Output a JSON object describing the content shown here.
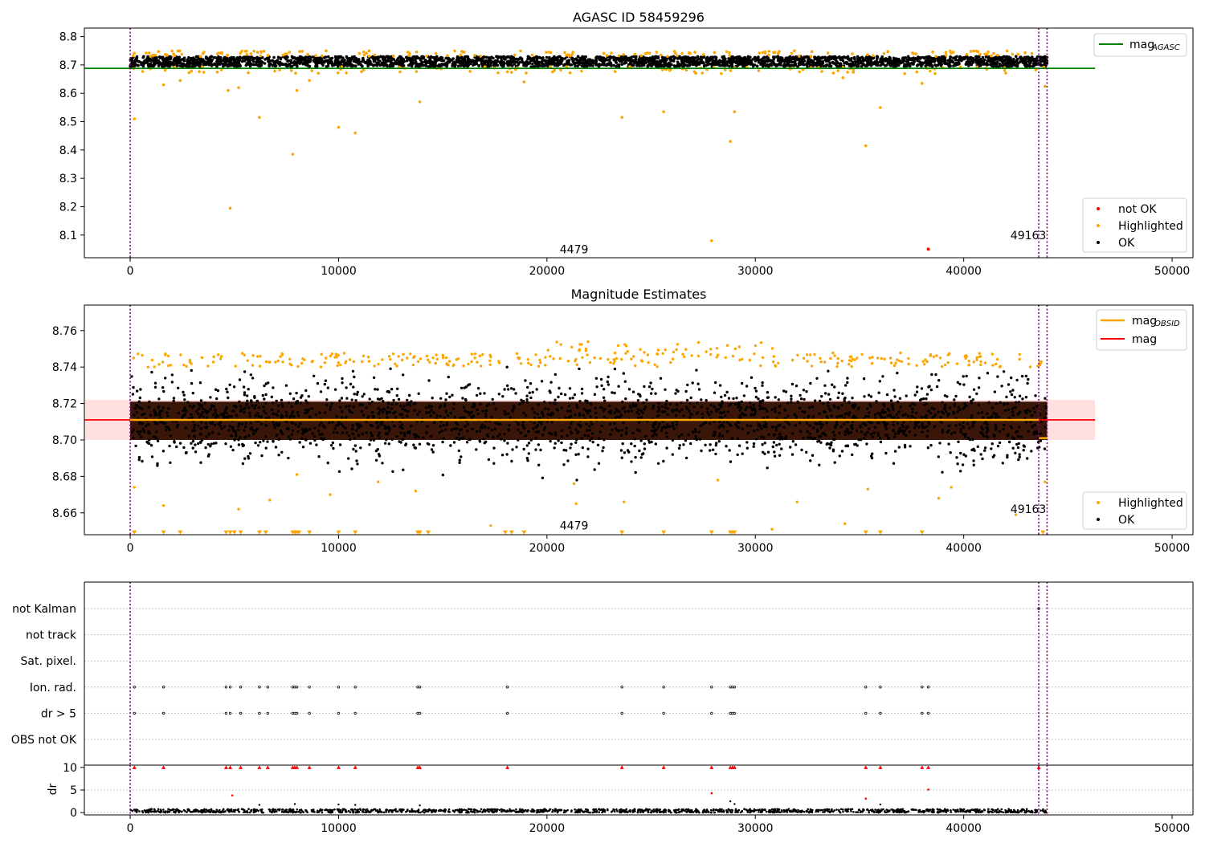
{
  "colors": {
    "ok": "#000000",
    "highlighted": "#ffa500",
    "not_ok": "#ff0000",
    "mag_agasc_line": "#008000",
    "mag_obsid_line": "#ffa500",
    "mag_line": "#ff0000",
    "mag_band": "#ffcccc",
    "obsid_boundary": "#800080",
    "grid": "#b0b0b0"
  },
  "chart_data": [
    {
      "type": "scatter",
      "title": "AGASC ID 58459296",
      "xlim": [
        -2200,
        51000
      ],
      "ylim": [
        8.02,
        8.83
      ],
      "xticks": [
        0,
        10000,
        20000,
        30000,
        40000,
        50000
      ],
      "xtick_labels": [
        "0",
        "10000",
        "20000",
        "30000",
        "40000",
        "50000"
      ],
      "yticks": [
        8.1,
        8.2,
        8.3,
        8.4,
        8.5,
        8.6,
        8.7,
        8.8
      ],
      "ytick_labels": [
        "8.1",
        "8.2",
        "8.3",
        "8.4",
        "8.5",
        "8.6",
        "8.7",
        "8.8"
      ],
      "x_range_of_points": [
        0,
        44000
      ],
      "ok_band": {
        "center": 8.712,
        "half_width": 0.018
      },
      "mag_agasc": {
        "y": 8.688,
        "x": [
          -2200,
          46300
        ]
      },
      "obsid_boundaries": [
        0,
        43600,
        44000
      ],
      "annotations": [
        {
          "text": "4479",
          "x": 21300,
          "y": 8.05
        },
        {
          "text": "49163",
          "x": 43100,
          "y": 8.1
        }
      ],
      "highlighted_outliers": [
        [
          200,
          8.51
        ],
        [
          1600,
          8.63
        ],
        [
          4800,
          8.195
        ],
        [
          4700,
          8.61
        ],
        [
          6200,
          8.515
        ],
        [
          7800,
          8.385
        ],
        [
          8000,
          8.61
        ],
        [
          10000,
          8.48
        ],
        [
          10800,
          8.46
        ],
        [
          13900,
          8.57
        ],
        [
          23600,
          8.515
        ],
        [
          25600,
          8.535
        ],
        [
          27900,
          8.08
        ],
        [
          28800,
          8.43
        ],
        [
          29000,
          8.535
        ],
        [
          35300,
          8.415
        ],
        [
          36000,
          8.55
        ],
        [
          43900,
          8.625
        ],
        [
          38000,
          8.635
        ],
        [
          2400,
          8.645
        ],
        [
          5200,
          8.62
        ],
        [
          8600,
          8.645
        ],
        [
          18900,
          8.64
        ],
        [
          34200,
          8.655
        ]
      ],
      "not_ok_points": [
        [
          38300,
          8.05
        ]
      ],
      "legends": [
        {
          "placement": "upper right",
          "entries": [
            {
              "label": "mag",
              "subscript": "AGASC",
              "marker": "line",
              "color": "#008000"
            }
          ]
        },
        {
          "placement": "lower right",
          "entries": [
            {
              "label": "not OK",
              "marker": "dot",
              "color": "#ff0000"
            },
            {
              "label": "Highlighted",
              "marker": "dot",
              "color": "#ffa500"
            },
            {
              "label": "OK",
              "marker": "dot",
              "color": "#000000"
            }
          ]
        }
      ]
    },
    {
      "type": "scatter",
      "title": "Magnitude Estimates",
      "xlim": [
        -2200,
        51000
      ],
      "ylim": [
        8.648,
        8.774
      ],
      "xticks": [
        0,
        10000,
        20000,
        30000,
        40000,
        50000
      ],
      "xtick_labels": [
        "0",
        "10000",
        "20000",
        "30000",
        "40000",
        "50000"
      ],
      "yticks": [
        8.66,
        8.68,
        8.7,
        8.72,
        8.74,
        8.76
      ],
      "ytick_labels": [
        "8.66",
        "8.68",
        "8.70",
        "8.72",
        "8.74",
        "8.76"
      ],
      "x_range_of_points": [
        0,
        44000
      ],
      "ok_core_band": [
        8.7,
        8.721
      ],
      "ok_spread": [
        8.68,
        8.74
      ],
      "mag": {
        "y": 8.711,
        "band": [
          8.7,
          8.722
        ],
        "x": [
          -2200,
          46300
        ]
      },
      "mag_obsid": [
        {
          "x": [
            0,
            43600
          ],
          "y": 8.711
        },
        {
          "x": [
            43600,
            44000
          ],
          "y": 8.701
        }
      ],
      "obsid_boundaries": [
        0,
        43600,
        44000
      ],
      "annotations": [
        {
          "text": "4479",
          "x": 21300,
          "y": 8.653
        },
        {
          "text": "49163",
          "x": 43100,
          "y": 8.662
        }
      ],
      "clipped_marker_y": 8.649,
      "clipped_marker_x": [
        200,
        1600,
        2400,
        4600,
        4800,
        5000,
        5300,
        6200,
        6500,
        7800,
        7900,
        8000,
        8100,
        8600,
        10000,
        10800,
        13800,
        13900,
        14300,
        18000,
        18300,
        18900,
        23600,
        25600,
        27900,
        28800,
        28900,
        29000,
        35300,
        36000,
        38000,
        43800
      ],
      "highlighted_outliers_low": [
        [
          200,
          8.674
        ],
        [
          1600,
          8.664
        ],
        [
          5200,
          8.662
        ],
        [
          6700,
          8.667
        ],
        [
          8000,
          8.681
        ],
        [
          9600,
          8.67
        ],
        [
          11900,
          8.677
        ],
        [
          13700,
          8.672
        ],
        [
          17300,
          8.653
        ],
        [
          21300,
          8.676
        ],
        [
          21400,
          8.665
        ],
        [
          23700,
          8.666
        ],
        [
          28200,
          8.678
        ],
        [
          30800,
          8.651
        ],
        [
          32000,
          8.666
        ],
        [
          34300,
          8.654
        ],
        [
          35400,
          8.673
        ],
        [
          38800,
          8.668
        ],
        [
          39400,
          8.674
        ],
        [
          42500,
          8.659
        ],
        [
          43900,
          8.677
        ]
      ],
      "legends": [
        {
          "placement": "upper right",
          "entries": [
            {
              "label": "mag",
              "subscript": "OBSID",
              "marker": "line",
              "color": "#ffa500"
            },
            {
              "label": "mag",
              "marker": "line",
              "color": "#ff0000"
            }
          ]
        },
        {
          "placement": "lower right",
          "entries": [
            {
              "label": "Highlighted",
              "marker": "dot",
              "color": "#ffa500"
            },
            {
              "label": "OK",
              "marker": "dot",
              "color": "#000000"
            }
          ]
        }
      ]
    },
    {
      "type": "scatter",
      "title": "",
      "xlim": [
        -2200,
        51000
      ],
      "categories": [
        "not Kalman",
        "not track",
        "Sat. pixel.",
        "Ion. rad.",
        "dr > 5",
        "OBS not OK"
      ],
      "flag_points_x": [
        200,
        1600,
        4600,
        4800,
        5300,
        6200,
        6600,
        7800,
        7900,
        8000,
        8600,
        10000,
        10800,
        13800,
        13900,
        18100,
        23600,
        25600,
        27900,
        28800,
        28900,
        29000,
        35300,
        36000,
        38000,
        38300
      ],
      "flag_rows": [
        "Ion. rad.",
        "dr > 5"
      ],
      "not_kalman_points_x": [
        43600
      ],
      "obsid_boundaries": [
        0,
        43600,
        44000
      ],
      "flag_colors": {
        "flagged": "#ffffff",
        "edge": "#000000"
      }
    },
    {
      "type": "scatter",
      "title": "",
      "xlim": [
        -2200,
        51000
      ],
      "ylim": [
        -0.5,
        10.5
      ],
      "ylabel": "dr",
      "xticks": [
        0,
        10000,
        20000,
        30000,
        40000,
        50000
      ],
      "xtick_labels": [
        "0",
        "10000",
        "20000",
        "30000",
        "40000",
        "50000"
      ],
      "yticks": [
        0,
        5,
        10
      ],
      "ytick_labels": [
        "0",
        "5",
        "10"
      ],
      "clipped_marker_y": 10,
      "clipped_marker_x": [
        200,
        1600,
        4600,
        4800,
        5300,
        6200,
        6600,
        7800,
        7900,
        8000,
        8600,
        10000,
        10800,
        13800,
        13900,
        18100,
        23600,
        25600,
        27900,
        28800,
        28900,
        29000,
        35300,
        36000,
        38000,
        38300,
        43600
      ],
      "red_points": [
        [
          4900,
          3.8
        ],
        [
          27900,
          4.3
        ],
        [
          35300,
          3.1
        ],
        [
          38300,
          5.1
        ]
      ],
      "black_points": [
        [
          6200,
          1.7
        ],
        [
          7900,
          1.9
        ],
        [
          10000,
          1.8
        ],
        [
          10800,
          1.7
        ],
        [
          13900,
          1.6
        ],
        [
          28800,
          2.5
        ],
        [
          29000,
          1.9
        ],
        [
          36000,
          1.8
        ]
      ],
      "baseline_range": [
        0.0,
        0.8
      ],
      "obsid_boundaries": [
        0,
        43600,
        44000
      ]
    }
  ]
}
